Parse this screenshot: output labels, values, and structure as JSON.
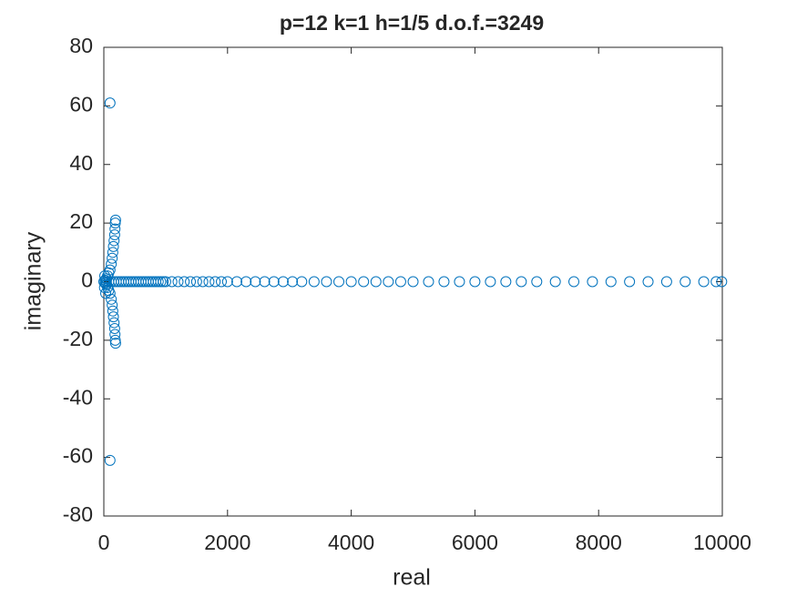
{
  "chart_data": {
    "type": "scatter",
    "title": "p=12 k=1 h=1/5 d.o.f.=3249",
    "x_label": "real",
    "y_label": "imaginary",
    "xlim": [
      0,
      10000
    ],
    "xticks": [
      0,
      2000,
      4000,
      6000,
      8000,
      10000
    ],
    "ylim": [
      -80,
      80
    ],
    "yticks": [
      -80,
      -60,
      -40,
      -20,
      0,
      20,
      40,
      60,
      80
    ],
    "marker": "open-circle",
    "box": true,
    "series": [
      {
        "color": "#0072BD",
        "x": [
          0,
          40,
          80,
          120,
          160,
          200,
          240,
          280,
          320,
          360,
          400,
          440,
          480,
          520,
          560,
          600,
          640,
          680,
          720,
          760,
          800,
          840,
          880,
          920,
          960,
          1000,
          1100,
          1200,
          1300,
          1400,
          1500,
          1600,
          1700,
          1800,
          1900,
          2000,
          2150,
          2300,
          2450,
          2600,
          2750,
          2900,
          3050,
          3200,
          3400,
          3600,
          3800,
          4000,
          4200,
          4400,
          4600,
          4800,
          5000,
          5250,
          5500,
          5750,
          6000,
          6250,
          6500,
          6750,
          7000,
          7300,
          7600,
          7900,
          8200,
          8500,
          8800,
          9100,
          9400,
          9700,
          9900,
          9990,
          190,
          185,
          180,
          175,
          165,
          155,
          145,
          135,
          120,
          100,
          80,
          60,
          40,
          20,
          190,
          185,
          180,
          175,
          165,
          155,
          145,
          135,
          120,
          100,
          80,
          60,
          40,
          20,
          100,
          100,
          10,
          15,
          30
        ],
        "y": [
          0,
          0,
          0,
          0,
          0,
          0,
          0,
          0,
          0,
          0,
          0,
          0,
          0,
          0,
          0,
          0,
          0,
          0,
          0,
          0,
          0,
          0,
          0,
          0,
          0,
          0,
          0,
          0,
          0,
          0,
          0,
          0,
          0,
          0,
          0,
          0,
          0,
          0,
          0,
          0,
          0,
          0,
          0,
          0,
          0,
          0,
          0,
          0,
          0,
          0,
          0,
          0,
          0,
          0,
          0,
          0,
          0,
          0,
          0,
          0,
          0,
          0,
          0,
          0,
          0,
          0,
          0,
          0,
          0,
          0,
          0,
          0,
          21,
          20,
          18,
          16,
          14,
          12,
          10,
          8,
          6,
          4,
          3,
          2,
          1,
          0.5,
          -21,
          -20,
          -18,
          -16,
          -14,
          -12,
          -10,
          -8,
          -6,
          -4,
          -3,
          -2,
          -1,
          -0.5,
          61,
          -61,
          -2,
          2,
          -4
        ]
      }
    ]
  }
}
